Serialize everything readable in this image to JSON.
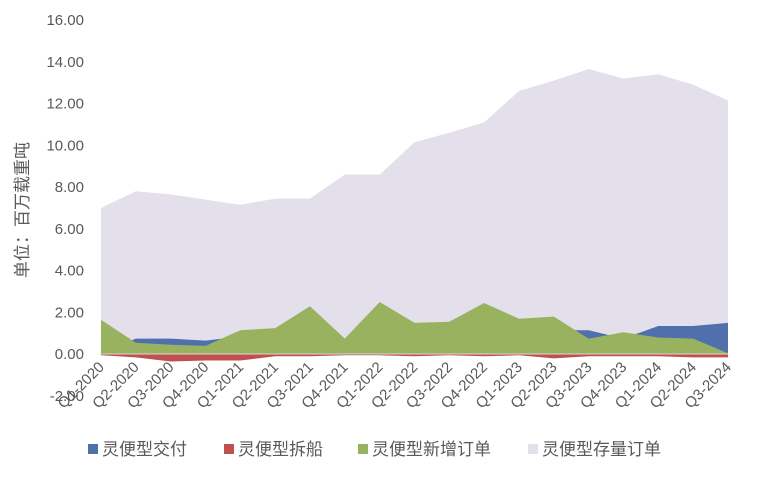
{
  "chart_data": {
    "type": "area",
    "title": "",
    "xlabel": "",
    "ylabel": "单位：百万载重吨",
    "ylim": [
      -2,
      16
    ],
    "yticks": [
      "-2.00",
      "0.00",
      "2.00",
      "4.00",
      "6.00",
      "8.00",
      "10.00",
      "12.00",
      "14.00",
      "16.00"
    ],
    "grid": false,
    "legend_position": "bottom",
    "categories": [
      "Q1-2020",
      "Q2-2020",
      "Q3-2020",
      "Q4-2020",
      "Q1-2021",
      "Q2-2021",
      "Q3-2021",
      "Q4-2021",
      "Q1-2022",
      "Q2-2022",
      "Q3-2022",
      "Q4-2022",
      "Q1-2023",
      "Q2-2023",
      "Q3-2023",
      "Q4-2023",
      "Q1-2024",
      "Q2-2024",
      "Q3-2024"
    ],
    "series": [
      {
        "name": "灵便型存量订单",
        "color": "#e3dfeb",
        "values": [
          7.0,
          7.8,
          7.65,
          7.4,
          7.15,
          7.45,
          7.45,
          8.6,
          8.6,
          10.15,
          10.6,
          11.1,
          12.6,
          13.1,
          13.65,
          13.2,
          13.4,
          12.9,
          12.15
        ]
      },
      {
        "name": "灵便型交付",
        "color": "#4f6fad",
        "values": [
          0.05,
          0.75,
          0.75,
          0.65,
          0.85,
          0.75,
          0.55,
          0.2,
          0.3,
          0.3,
          0.5,
          0.75,
          0.85,
          1.15,
          1.15,
          0.75,
          1.35,
          1.35,
          1.5
        ]
      },
      {
        "name": "灵便型新增订单",
        "color": "#98b25f",
        "values": [
          1.65,
          0.55,
          0.45,
          0.4,
          1.15,
          1.25,
          2.3,
          0.75,
          2.5,
          1.5,
          1.55,
          2.45,
          1.7,
          1.8,
          0.75,
          1.05,
          0.8,
          0.75,
          0.05
        ]
      },
      {
        "name": "灵便型拆船",
        "color": "#c0504d",
        "values": [
          -0.05,
          -0.15,
          -0.35,
          -0.3,
          -0.3,
          -0.1,
          -0.1,
          -0.05,
          -0.05,
          -0.1,
          -0.05,
          -0.1,
          -0.05,
          -0.2,
          -0.1,
          -0.1,
          -0.1,
          -0.15,
          -0.15
        ]
      }
    ]
  },
  "legend": [
    {
      "label": "灵便型交付",
      "color": "#4f6fad"
    },
    {
      "label": "灵便型拆船",
      "color": "#c0504d"
    },
    {
      "label": "灵便型新增订单",
      "color": "#98b25f"
    },
    {
      "label": "灵便型存量订单",
      "color": "#e3dfeb"
    }
  ]
}
